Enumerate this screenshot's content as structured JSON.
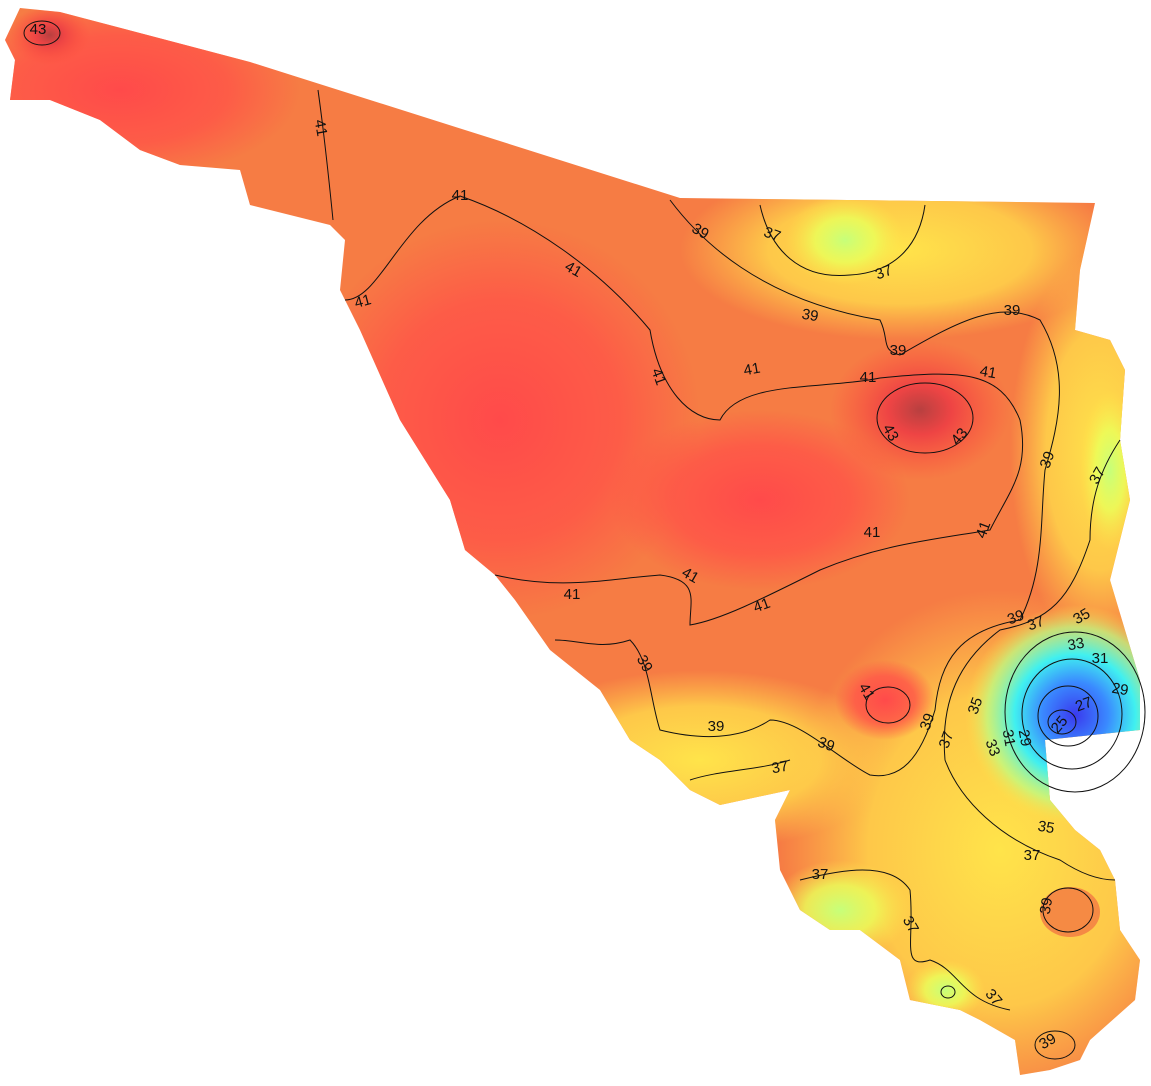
{
  "contour_labels": [
    43,
    41,
    41,
    41,
    41,
    39,
    37,
    37,
    39,
    39,
    39,
    41,
    41,
    41,
    41,
    43,
    43,
    39,
    37,
    41,
    41,
    41,
    41,
    41,
    39,
    37,
    35,
    33,
    31,
    29,
    27,
    25,
    39,
    41,
    35,
    39,
    37,
    29,
    31,
    33,
    39,
    39,
    37,
    35,
    37,
    37,
    39,
    37,
    37,
    39
  ]
}
